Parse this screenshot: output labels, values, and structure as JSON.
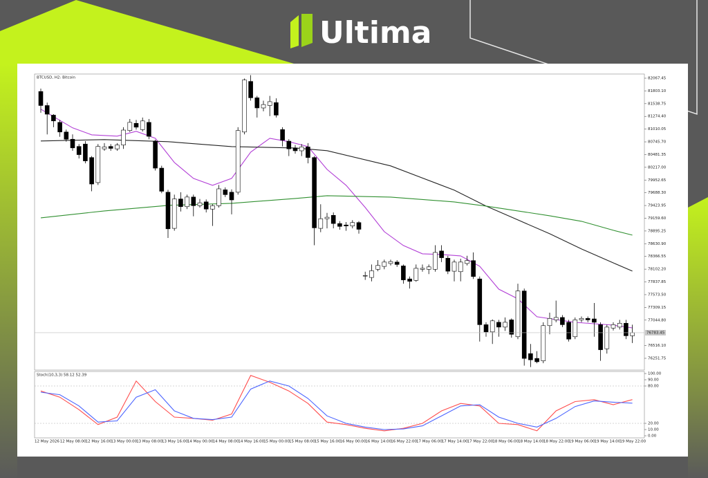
{
  "brand": {
    "name": "Ultima"
  },
  "chart_data": [
    {
      "type": "candlestick",
      "title": "BTCUSD, H2: Bitcoin",
      "categories": [
        "12 May 2026",
        null,
        null,
        null,
        "12 May 08:00",
        null,
        null,
        null,
        "12 May 16:00",
        null,
        null,
        null,
        "13 May 00:00",
        null,
        null,
        null,
        "13 May 08:00",
        null,
        null,
        null,
        "13 May 16:00",
        null,
        null,
        null,
        "14 May 00:00",
        null,
        null,
        null,
        "14 May 08:00",
        null,
        null,
        null,
        "14 May 16:00",
        null,
        null,
        null,
        "15 May 00:00",
        null,
        null,
        null,
        "15 May 08:00",
        null,
        null,
        null,
        "15 May 16:00",
        null,
        null,
        null,
        "16 May 00:00",
        null,
        null,
        null,
        "16 May 14:00",
        null,
        null,
        null,
        "16 May 22:00",
        null,
        null,
        null,
        "17 May 06:00",
        null,
        null,
        null,
        "17 May 14:00",
        null,
        null,
        null,
        "17 May 22:00",
        null,
        null,
        null,
        "18 May 06:00",
        null,
        null,
        null,
        "18 May 14:00",
        null,
        null,
        null,
        "18 May 22:00",
        null,
        null,
        null,
        "19 May 06:00",
        null,
        null,
        null,
        "19 May 14:00",
        null,
        null,
        null,
        "19 May 22:00",
        null
      ],
      "open": [
        81790,
        81500,
        81300,
        81150,
        80950,
        80800,
        80650,
        80700,
        80420,
        79900,
        80600,
        80650,
        80600,
        80680,
        80980,
        81130,
        81000,
        81150,
        80760,
        80200,
        79700,
        78950,
        79560,
        79400,
        79600,
        79420,
        79500,
        79350,
        79420,
        79750,
        79700,
        79700,
        80950,
        82000,
        81660,
        81450,
        81500,
        81560,
        81000,
        80760,
        80620,
        80560,
        80640,
        80420,
        78950,
        79150,
        79220,
        79050,
        79020,
        79000,
        79070,
        77960,
        77930,
        78100,
        78160,
        78220,
        78250,
        78170,
        77900,
        77870,
        78100,
        78100,
        78100,
        78480,
        78330,
        78060,
        78050,
        78220,
        78280,
        77900,
        76950,
        76800,
        77000,
        76900,
        77050,
        76700,
        77650,
        76350,
        76250,
        76200,
        76930,
        77050,
        77100,
        77000,
        76700,
        77050,
        77080,
        77070,
        76950,
        76450,
        76880,
        76900,
        76980,
        76720
      ],
      "high": [
        81850,
        81560,
        81320,
        81200,
        81000,
        80900,
        80700,
        80760,
        80450,
        80700,
        80720,
        80700,
        80720,
        81050,
        81220,
        81200,
        81250,
        81220,
        80790,
        80250,
        79750,
        79650,
        79700,
        79650,
        79650,
        79560,
        79550,
        79450,
        79850,
        79800,
        79760,
        81050,
        82060,
        82130,
        81700,
        81600,
        81700,
        81650,
        81050,
        80800,
        80680,
        80700,
        80720,
        80450,
        79450,
        79270,
        79280,
        79100,
        79080,
        79120,
        79100,
        78050,
        78200,
        78290,
        78300,
        78300,
        78290,
        78200,
        77950,
        78200,
        78200,
        78200,
        78600,
        78600,
        78380,
        78300,
        78320,
        78380,
        78450,
        77950,
        77000,
        77060,
        77050,
        77100,
        77080,
        77800,
        77700,
        76550,
        76400,
        77000,
        77200,
        77450,
        77150,
        77050,
        77100,
        77120,
        77120,
        77400,
        77000,
        76950,
        77000,
        77050,
        77050,
        76950
      ],
      "low": [
        81350,
        80900,
        81050,
        80850,
        80750,
        80560,
        80400,
        80300,
        79720,
        79850,
        80560,
        80560,
        80560,
        80600,
        80950,
        81000,
        80960,
        80800,
        80150,
        79680,
        78750,
        78900,
        79300,
        79350,
        79200,
        79380,
        79280,
        79000,
        79380,
        79600,
        79240,
        79650,
        80900,
        81600,
        81250,
        81380,
        81280,
        81250,
        80650,
        80450,
        80500,
        80450,
        80300,
        78600,
        78870,
        78950,
        78950,
        78920,
        78900,
        78950,
        78840,
        77880,
        77850,
        78060,
        78100,
        78180,
        78150,
        77800,
        77700,
        77840,
        78050,
        78000,
        78050,
        78250,
        78000,
        77850,
        77850,
        78180,
        77900,
        76600,
        76700,
        76550,
        76700,
        76820,
        76680,
        76650,
        76100,
        76070,
        76150,
        76150,
        76750,
        77000,
        76900,
        76600,
        76650,
        77000,
        77000,
        76700,
        76200,
        76350,
        76830,
        76850,
        76650,
        76570
      ],
      "close": [
        81500,
        81320,
        81180,
        80950,
        80800,
        80620,
        80480,
        80350,
        79870,
        80650,
        80640,
        80610,
        80680,
        80990,
        81150,
        81050,
        81180,
        80860,
        80200,
        79720,
        78940,
        79560,
        79400,
        79600,
        79420,
        79480,
        79350,
        79420,
        79770,
        79650,
        79540,
        80980,
        82030,
        81660,
        81450,
        81520,
        81580,
        81300,
        80780,
        80600,
        80560,
        80640,
        80420,
        78960,
        79150,
        79180,
        79050,
        78990,
        79000,
        79070,
        78930,
        77970,
        78070,
        78180,
        78250,
        78260,
        78200,
        77880,
        77850,
        78120,
        78120,
        78150,
        78450,
        78340,
        78060,
        78250,
        78250,
        78280,
        77950,
        76950,
        76800,
        77030,
        76900,
        77000,
        76750,
        77650,
        76250,
        76220,
        76180,
        76930,
        77080,
        77100,
        76950,
        76650,
        77050,
        77080,
        77050,
        77000,
        76430,
        76900,
        76950,
        76980,
        76720,
        76783.45
      ],
      "last_price": 76783.45,
      "ylim": [
        76007.5,
        82153.7
      ],
      "yticks": [
        76251.75,
        {
          "value": 76516.1,
          "label": "76516.10"
        },
        {
          "value": 77044.8,
          "label": "77044.80"
        },
        77309.15,
        {
          "value": 77573.5,
          "label": "77573.50"
        },
        77837.85,
        {
          "value": 78102.2,
          "label": "78102.20"
        },
        78366.55,
        {
          "value": 78630.9,
          "label": "78630.90"
        },
        78895.25,
        {
          "value": 79159.6,
          "label": "79159.60"
        },
        79423.95,
        {
          "value": 79688.3,
          "label": "79688.30"
        },
        79952.65,
        {
          "value": 80217,
          "label": "80217.00"
        },
        80481.35,
        {
          "value": 80745.7,
          "label": "80745.70"
        },
        81010.05,
        {
          "value": 81274.4,
          "label": "81274.40"
        },
        81538.75,
        {
          "value": 81803.1,
          "label": "81803.10"
        },
        82067.45
      ],
      "up_color": "#ffffff",
      "down_color": "#000000",
      "series": [
        {
          "color": "#b23fd6",
          "x": [
            0,
            5,
            8,
            12,
            15,
            18,
            21,
            24,
            27,
            30,
            33,
            36,
            39,
            42,
            45,
            48,
            51,
            54,
            57,
            60,
            63,
            66,
            69,
            72,
            75,
            78,
            81,
            84,
            87,
            90,
            93
          ],
          "values": [
            81424,
            81036,
            80892,
            80864,
            80964,
            80820,
            80317,
            79987,
            79843,
            79987,
            80533,
            80820,
            80749,
            80648,
            80174,
            79843,
            79384,
            78881,
            78594,
            78421,
            78407,
            78378,
            78163,
            77688,
            77487,
            77114,
            77056,
            76999,
            76970,
            76941,
            76884
          ]
        },
        {
          "color": "#222222",
          "x": [
            0,
            10,
            20,
            30,
            40,
            45,
            55,
            65,
            70,
            75,
            80,
            85,
            90,
            93
          ],
          "values": [
            80763,
            80792,
            80749,
            80648,
            80619,
            80562,
            80246,
            79743,
            79412,
            79125,
            78838,
            78522,
            78234,
            78062
          ]
        },
        {
          "color": "#2f8f2f",
          "x": [
            0,
            10,
            20,
            30,
            40,
            45,
            55,
            65,
            70,
            75,
            80,
            85,
            90,
            93
          ],
          "values": [
            79168,
            79312,
            79427,
            79470,
            79570,
            79628,
            79599,
            79498,
            79412,
            79312,
            79211,
            79096,
            78910,
            78809
          ]
        }
      ]
    },
    {
      "type": "line",
      "title": "Stoch(10,3,3) 58.12 52.39",
      "ylim": [
        0,
        100
      ],
      "yticks": [
        {
          "value": 100,
          "label": "100.00"
        },
        {
          "value": 90,
          "label": "90.00"
        },
        {
          "value": 80,
          "label": "80.00"
        },
        {
          "value": 20,
          "label": "20.00"
        },
        {
          "value": 10,
          "label": "10.00"
        },
        {
          "value": 0,
          "label": "0.00"
        }
      ],
      "levels": [
        80,
        20
      ],
      "series": [
        {
          "color": "#ff4d4d",
          "x": [
            0,
            3,
            6,
            9,
            12,
            15,
            18,
            21,
            24,
            27,
            30,
            33,
            36,
            39,
            42,
            45,
            48,
            51,
            54,
            57,
            60,
            63,
            66,
            69,
            72,
            75,
            78,
            81,
            84,
            87,
            90,
            93
          ],
          "values": [
            72,
            62,
            42,
            18,
            30,
            88,
            55,
            30,
            28,
            25,
            35,
            97,
            86,
            72,
            52,
            22,
            18,
            12,
            8,
            12,
            20,
            40,
            52,
            48,
            20,
            18,
            8,
            40,
            55,
            58,
            50,
            58.12
          ]
        },
        {
          "color": "#4a63ff",
          "x": [
            0,
            3,
            6,
            9,
            12,
            15,
            18,
            21,
            24,
            27,
            30,
            33,
            36,
            39,
            42,
            45,
            48,
            51,
            54,
            57,
            60,
            63,
            66,
            69,
            72,
            75,
            78,
            81,
            84,
            87,
            90,
            93
          ],
          "values": [
            70,
            66,
            48,
            22,
            24,
            62,
            74,
            40,
            28,
            26,
            30,
            75,
            88,
            80,
            60,
            32,
            20,
            14,
            10,
            11,
            16,
            32,
            48,
            50,
            30,
            20,
            14,
            28,
            47,
            56,
            54,
            52.39
          ]
        }
      ]
    }
  ]
}
